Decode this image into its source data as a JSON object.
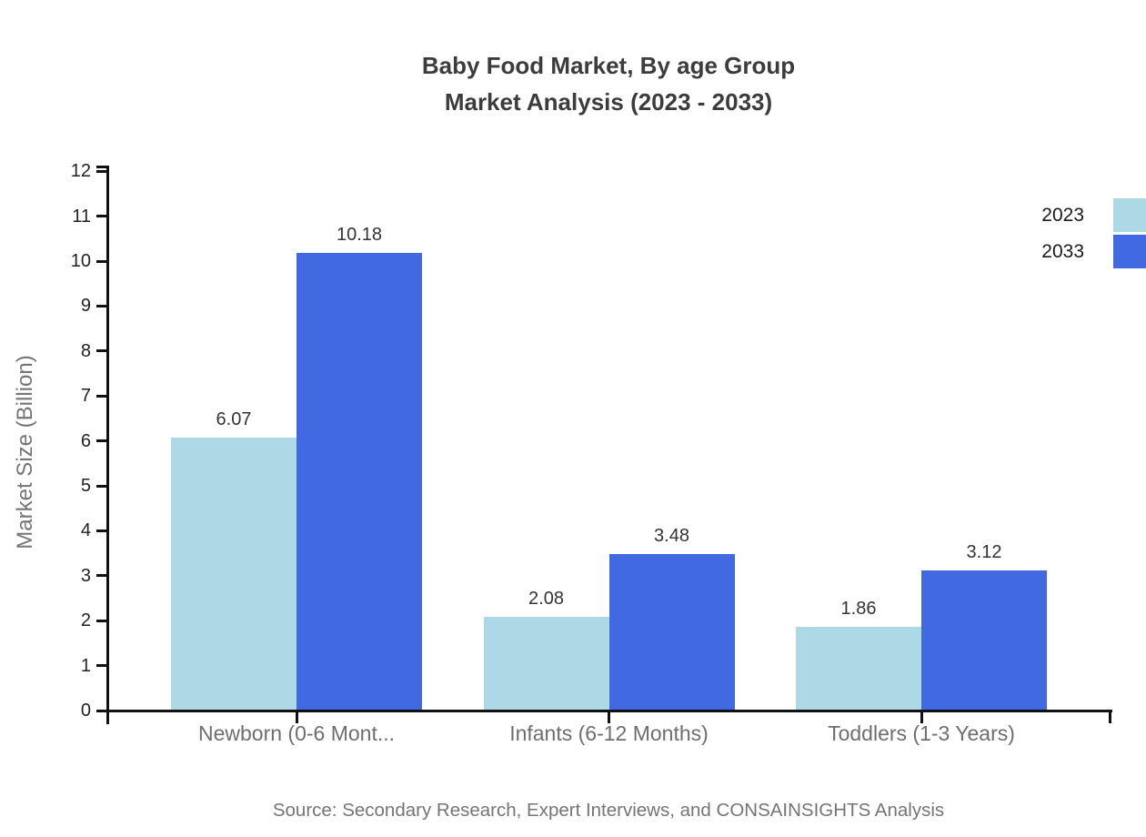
{
  "title": {
    "line1": "Baby Food Market, By age Group",
    "line2": "Market Analysis (2023 - 2033)"
  },
  "source": "Source: Secondary Research, Expert Interviews, and CONSAINSIGHTS Analysis",
  "chart_data": {
    "type": "bar",
    "title": "Baby Food Market, By age Group Market Analysis (2023 - 2033)",
    "categories": [
      "Newborn (0-6 Mont...",
      "Infants (6-12 Months)",
      "Toddlers (1-3 Years)"
    ],
    "series": [
      {
        "name": "2023",
        "color": "#ADD8E6",
        "values": [
          6.07,
          2.08,
          1.86
        ]
      },
      {
        "name": "2033",
        "color": "#4169E1",
        "values": [
          10.18,
          3.48,
          3.12
        ]
      }
    ],
    "value_labels": [
      [
        "6.07",
        "2.08",
        "1.86"
      ],
      [
        "10.18",
        "3.48",
        "3.12"
      ]
    ],
    "xlabel": "",
    "ylabel": "Market Size (Billion)",
    "ylim": [
      0,
      12
    ],
    "ytick_step": 1,
    "grid": false,
    "legend_position": "top-right",
    "axis_color": "#111111",
    "background_color": "#ffffff"
  }
}
